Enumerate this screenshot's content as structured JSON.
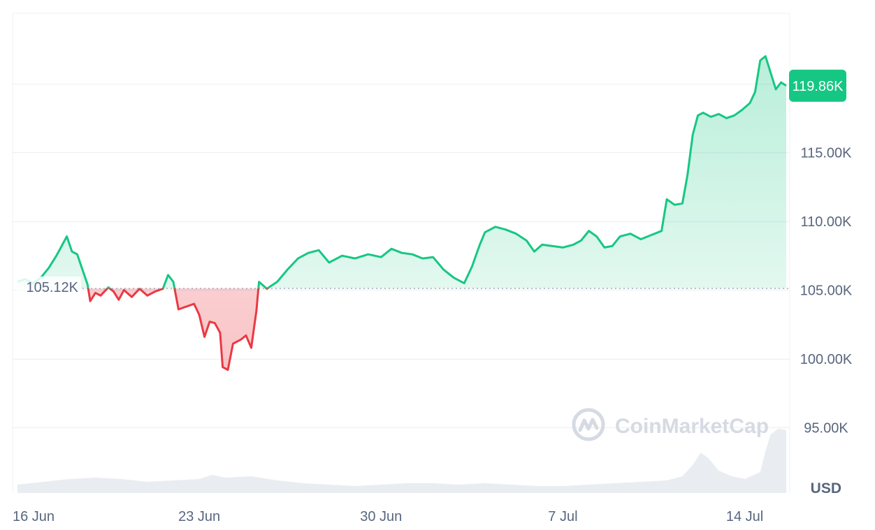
{
  "chart_data": {
    "type": "area",
    "currency": "USD",
    "reference_label": "105.12K",
    "reference_value": 105.12,
    "current_label": "119.86K",
    "current_value": 119.86,
    "ylim": [
      90.5,
      125.5
    ],
    "y_ticks": [
      {
        "value": 115,
        "label": "115.00K"
      },
      {
        "value": 110,
        "label": "110.00K"
      },
      {
        "value": 105,
        "label": "105.00K"
      },
      {
        "value": 100,
        "label": "100.00K"
      },
      {
        "value": 95,
        "label": "95.00K"
      }
    ],
    "x_ticks": [
      {
        "day": 0,
        "label": "16 Jun"
      },
      {
        "day": 7,
        "label": "23 Jun"
      },
      {
        "day": 14,
        "label": "30 Jun"
      },
      {
        "day": 21,
        "label": "7 Jul"
      },
      {
        "day": 28,
        "label": "14 Jul"
      }
    ],
    "colors": {
      "up": "#16c784",
      "down": "#ea3943",
      "grid": "#eff2f5",
      "text": "#58667e",
      "badge": "#16c784",
      "volume": "#e9ecf1"
    },
    "price_series": [
      [
        0.0,
        105.6
      ],
      [
        0.3,
        105.8
      ],
      [
        0.6,
        105.5
      ],
      [
        0.9,
        105.9
      ],
      [
        1.2,
        106.6
      ],
      [
        1.5,
        107.5
      ],
      [
        1.7,
        108.2
      ],
      [
        1.9,
        108.9
      ],
      [
        2.1,
        107.8
      ],
      [
        2.3,
        107.6
      ],
      [
        2.5,
        106.5
      ],
      [
        2.7,
        105.4
      ],
      [
        2.8,
        104.2
      ],
      [
        3.0,
        104.8
      ],
      [
        3.2,
        104.6
      ],
      [
        3.5,
        105.2
      ],
      [
        3.7,
        104.9
      ],
      [
        3.9,
        104.3
      ],
      [
        4.1,
        105.0
      ],
      [
        4.4,
        104.5
      ],
      [
        4.7,
        105.1
      ],
      [
        5.0,
        104.6
      ],
      [
        5.3,
        104.9
      ],
      [
        5.6,
        105.1
      ],
      [
        5.8,
        106.1
      ],
      [
        6.0,
        105.6
      ],
      [
        6.2,
        103.6
      ],
      [
        6.5,
        103.8
      ],
      [
        6.8,
        104.0
      ],
      [
        7.0,
        103.2
      ],
      [
        7.2,
        101.6
      ],
      [
        7.4,
        102.7
      ],
      [
        7.6,
        102.6
      ],
      [
        7.8,
        101.9
      ],
      [
        7.9,
        99.4
      ],
      [
        8.1,
        99.2
      ],
      [
        8.3,
        101.1
      ],
      [
        8.6,
        101.4
      ],
      [
        8.8,
        101.7
      ],
      [
        9.0,
        100.8
      ],
      [
        9.2,
        103.5
      ],
      [
        9.3,
        105.6
      ],
      [
        9.6,
        105.1
      ],
      [
        10.0,
        105.6
      ],
      [
        10.4,
        106.5
      ],
      [
        10.8,
        107.3
      ],
      [
        11.2,
        107.7
      ],
      [
        11.6,
        107.9
      ],
      [
        12.0,
        107.0
      ],
      [
        12.5,
        107.5
      ],
      [
        13.0,
        107.3
      ],
      [
        13.5,
        107.6
      ],
      [
        14.0,
        107.4
      ],
      [
        14.4,
        108.0
      ],
      [
        14.8,
        107.7
      ],
      [
        15.2,
        107.6
      ],
      [
        15.6,
        107.3
      ],
      [
        16.0,
        107.4
      ],
      [
        16.4,
        106.5
      ],
      [
        16.8,
        105.9
      ],
      [
        17.2,
        105.5
      ],
      [
        17.5,
        106.7
      ],
      [
        17.8,
        108.3
      ],
      [
        18.0,
        109.2
      ],
      [
        18.4,
        109.6
      ],
      [
        18.8,
        109.4
      ],
      [
        19.2,
        109.1
      ],
      [
        19.6,
        108.6
      ],
      [
        19.9,
        107.8
      ],
      [
        20.2,
        108.3
      ],
      [
        20.6,
        108.2
      ],
      [
        21.0,
        108.1
      ],
      [
        21.4,
        108.3
      ],
      [
        21.7,
        108.6
      ],
      [
        22.0,
        109.3
      ],
      [
        22.3,
        108.9
      ],
      [
        22.6,
        108.1
      ],
      [
        22.9,
        108.2
      ],
      [
        23.2,
        108.9
      ],
      [
        23.6,
        109.1
      ],
      [
        24.0,
        108.7
      ],
      [
        24.4,
        109.0
      ],
      [
        24.8,
        109.3
      ],
      [
        25.0,
        111.6
      ],
      [
        25.3,
        111.2
      ],
      [
        25.6,
        111.3
      ],
      [
        25.8,
        113.4
      ],
      [
        26.0,
        116.3
      ],
      [
        26.2,
        117.7
      ],
      [
        26.4,
        117.9
      ],
      [
        26.7,
        117.6
      ],
      [
        27.0,
        117.8
      ],
      [
        27.3,
        117.5
      ],
      [
        27.6,
        117.7
      ],
      [
        27.9,
        118.1
      ],
      [
        28.2,
        118.6
      ],
      [
        28.4,
        119.4
      ],
      [
        28.6,
        121.7
      ],
      [
        28.8,
        122.0
      ],
      [
        29.0,
        120.8
      ],
      [
        29.2,
        119.6
      ],
      [
        29.4,
        120.1
      ],
      [
        29.6,
        119.86
      ]
    ],
    "volume_series": [
      [
        0.0,
        0.6
      ],
      [
        1.0,
        0.8
      ],
      [
        2.0,
        1.0
      ],
      [
        3.0,
        1.1
      ],
      [
        4.0,
        1.0
      ],
      [
        5.0,
        0.8
      ],
      [
        6.0,
        0.9
      ],
      [
        7.0,
        1.0
      ],
      [
        7.5,
        1.3
      ],
      [
        8.0,
        1.1
      ],
      [
        9.0,
        1.2
      ],
      [
        10.0,
        0.9
      ],
      [
        11.0,
        0.7
      ],
      [
        12.0,
        0.6
      ],
      [
        13.0,
        0.5
      ],
      [
        14.0,
        0.6
      ],
      [
        15.0,
        0.7
      ],
      [
        16.0,
        0.7
      ],
      [
        17.0,
        0.6
      ],
      [
        18.0,
        0.7
      ],
      [
        19.0,
        0.6
      ],
      [
        20.0,
        0.5
      ],
      [
        21.0,
        0.5
      ],
      [
        22.0,
        0.6
      ],
      [
        23.0,
        0.7
      ],
      [
        24.0,
        0.8
      ],
      [
        25.0,
        0.9
      ],
      [
        25.6,
        1.2
      ],
      [
        26.0,
        2.0
      ],
      [
        26.3,
        2.9
      ],
      [
        26.6,
        2.5
      ],
      [
        27.0,
        1.6
      ],
      [
        27.5,
        1.2
      ],
      [
        28.0,
        1.0
      ],
      [
        28.6,
        1.5
      ],
      [
        28.8,
        3.0
      ],
      [
        29.0,
        4.2
      ],
      [
        29.3,
        4.6
      ],
      [
        29.6,
        4.5
      ]
    ]
  },
  "watermark": "CoinMarketCap"
}
